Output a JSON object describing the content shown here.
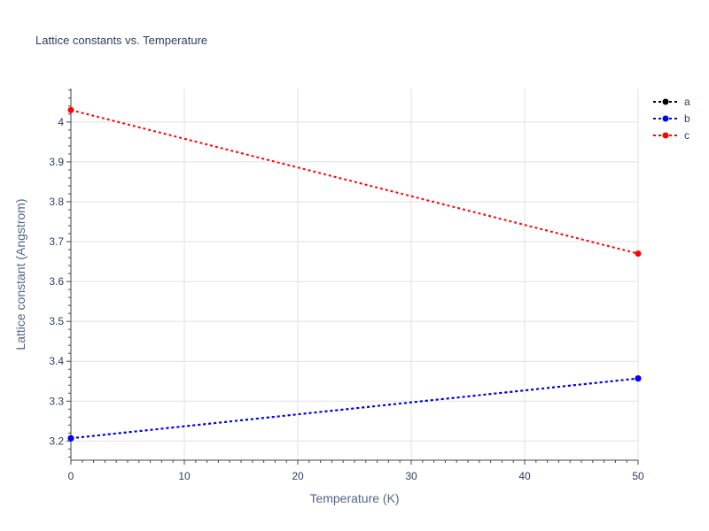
{
  "chart_data": {
    "type": "line",
    "title": "Lattice constants vs. Temperature",
    "xlabel": "Temperature (K)",
    "ylabel": "Lattice constant (Angstrom)",
    "xlim": [
      0,
      50
    ],
    "ylim": [
      3.152,
      4.084
    ],
    "xticks": [
      0,
      10,
      20,
      30,
      40,
      50
    ],
    "xtick_labels": [
      "0",
      "10",
      "20",
      "30",
      "40",
      "50"
    ],
    "yticks": [
      3.2,
      3.3,
      3.4,
      3.5,
      3.6,
      3.7,
      3.8,
      3.9,
      4.0
    ],
    "ytick_labels": [
      "3.2",
      "3.3",
      "3.4",
      "3.5",
      "3.6",
      "3.7",
      "3.8",
      "3.9",
      "4"
    ],
    "grid": true,
    "legend_position": "top-right",
    "series": [
      {
        "name": "a",
        "color": "#000000",
        "x": [
          0,
          50
        ],
        "y": [
          3.207,
          3.357
        ]
      },
      {
        "name": "b",
        "color": "#0000ff",
        "x": [
          0,
          50
        ],
        "y": [
          3.207,
          3.357
        ]
      },
      {
        "name": "c",
        "color": "#ff0000",
        "x": [
          0,
          50
        ],
        "y": [
          4.03,
          3.67
        ]
      }
    ]
  }
}
